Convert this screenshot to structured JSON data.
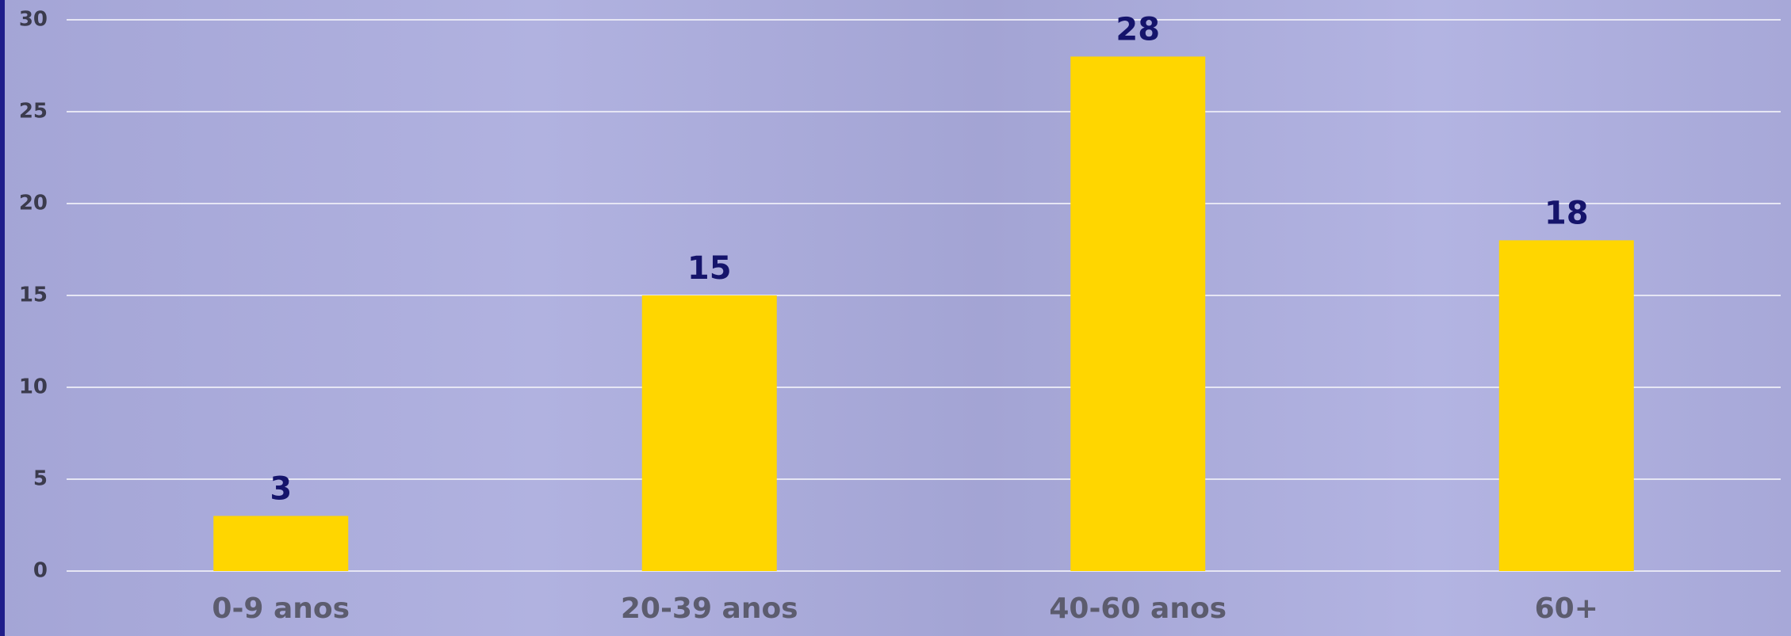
{
  "chart_data": {
    "type": "bar",
    "categories": [
      "0-9 anos",
      "20-39 anos",
      "40-60 anos",
      "60+"
    ],
    "values": [
      3,
      15,
      28,
      18
    ],
    "color": "#ffd600",
    "ylim": [
      0,
      30
    ],
    "yticks": [
      0,
      5,
      10,
      15,
      20,
      25,
      30
    ],
    "grid": true
  }
}
